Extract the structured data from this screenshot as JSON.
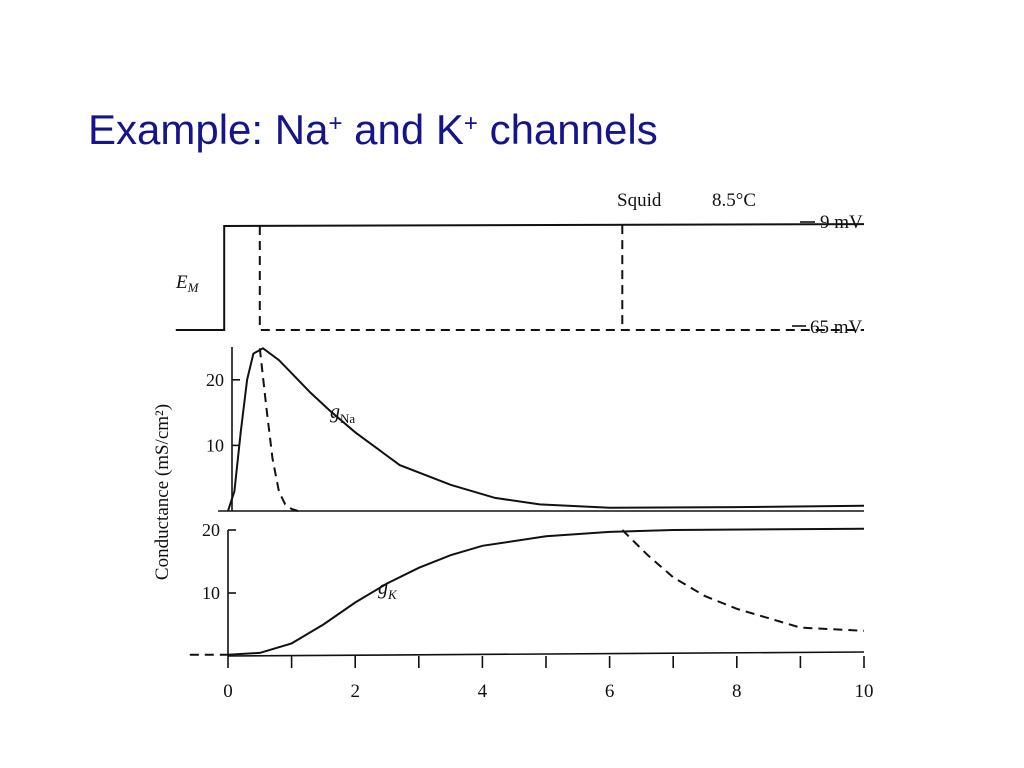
{
  "slide_title": [
    {
      "text": "Example: Na"
    },
    {
      "text": "+",
      "sup": true
    },
    {
      "text": " and K"
    },
    {
      "text": "+",
      "sup": true
    },
    {
      "text": " channels"
    }
  ],
  "chart_data": [
    {
      "type": "line",
      "xlim": [
        0,
        10
      ],
      "ylim": [
        -65,
        -9
      ],
      "ylabel": "E",
      "ylabel_sub": "M",
      "annotations": [
        "Squid",
        "8.5°C",
        "9 mV",
        "65 mV"
      ],
      "series": [
        {
          "x": [
            -0.82,
            -0.06,
            -0.06,
            10
          ],
          "values": [
            -65,
            -65,
            -9,
            -8
          ],
          "dashed": false
        },
        {
          "x": [
            0.5,
            0.5,
            10
          ],
          "values": [
            -9,
            -65,
            -65
          ],
          "dashed": true
        },
        {
          "x": [
            6.2,
            6.2
          ],
          "values": [
            -8.5,
            -65
          ],
          "dashed": true
        }
      ]
    },
    {
      "type": "line",
      "xlim": [
        0,
        10
      ],
      "ylim": [
        0,
        25
      ],
      "yticks": [
        10,
        20
      ],
      "ylabel": "Conductance (mS/cm²)",
      "series": [
        {
          "name": "g",
          "name_sub": "Na",
          "dashed": false,
          "x": [
            0,
            0.1,
            0.2,
            0.3,
            0.4,
            0.55,
            0.8,
            1,
            1.3,
            1.6,
            2,
            2.7,
            3.5,
            4.2,
            4.9,
            6,
            8,
            10
          ],
          "values": [
            0,
            3,
            12,
            20,
            24,
            24.8,
            23,
            21,
            18,
            15.3,
            12,
            7,
            4,
            2,
            1,
            0.5,
            0.6,
            0.8
          ]
        },
        {
          "dashed": true,
          "x": [
            0.5,
            0.6,
            0.7,
            0.8,
            0.9,
            1,
            1.1
          ],
          "values": [
            24.8,
            16,
            8,
            3,
            1,
            0.3,
            0
          ]
        }
      ]
    },
    {
      "type": "line",
      "xlim": [
        0,
        10
      ],
      "ylim": [
        0,
        20
      ],
      "yticks": [
        10,
        20
      ],
      "xticks": [
        0,
        2,
        4,
        6,
        8,
        10
      ],
      "series": [
        {
          "name": "g",
          "name_sub": "K",
          "dashed": false,
          "x": [
            0,
            0.5,
            1,
            1.5,
            2,
            2.5,
            3,
            3.5,
            4,
            5,
            6,
            7,
            10
          ],
          "values": [
            0.2,
            0.5,
            2,
            5,
            8.5,
            11.5,
            14,
            16,
            17.5,
            19,
            19.7,
            20,
            20.2
          ]
        },
        {
          "dashed": true,
          "x": [
            6.2,
            6.6,
            7,
            7.5,
            8,
            8.5,
            9,
            10
          ],
          "values": [
            20,
            16,
            12.5,
            9.5,
            7.5,
            6,
            4.5,
            4
          ]
        },
        {
          "dashed": true,
          "x": [
            -0.6,
            0
          ],
          "values": [
            0.2,
            0.2
          ]
        }
      ]
    }
  ]
}
